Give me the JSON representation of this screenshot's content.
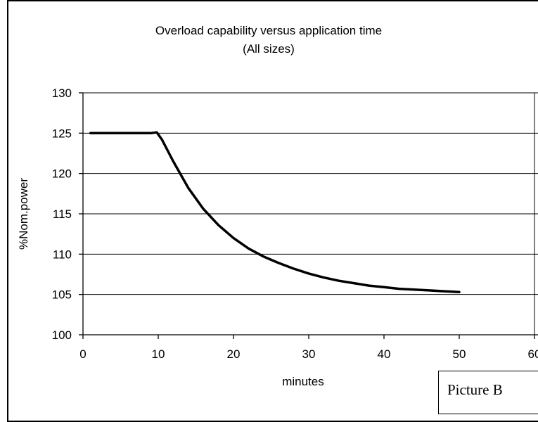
{
  "chart_data": {
    "type": "line",
    "title": "Overload capability versus application time",
    "subtitle": "(All sizes)",
    "xlabel": "minutes",
    "ylabel": "%Nom.power",
    "xlim": [
      0,
      60
    ],
    "ylim": [
      100,
      130
    ],
    "xticks": [
      "0",
      "10",
      "20",
      "30",
      "40",
      "50",
      "60"
    ],
    "yticks": [
      "100",
      "105",
      "110",
      "115",
      "120",
      "125",
      "130"
    ],
    "grid": "horizontal",
    "series": [
      {
        "x": [
          1,
          5,
          9,
          9.8,
          10.5,
          12,
          14,
          16,
          18,
          20,
          22,
          24,
          26,
          28,
          30,
          32,
          34,
          36,
          38,
          40,
          42,
          44,
          46,
          48,
          50
        ],
        "y": [
          125,
          125,
          125,
          125.1,
          124.2,
          121.5,
          118.2,
          115.6,
          113.6,
          112.0,
          110.7,
          109.7,
          108.9,
          108.2,
          107.6,
          107.1,
          106.7,
          106.4,
          106.1,
          105.9,
          105.7,
          105.6,
          105.5,
          105.4,
          105.3
        ],
        "color": "#000000"
      }
    ]
  },
  "picture_label": "Picture B"
}
